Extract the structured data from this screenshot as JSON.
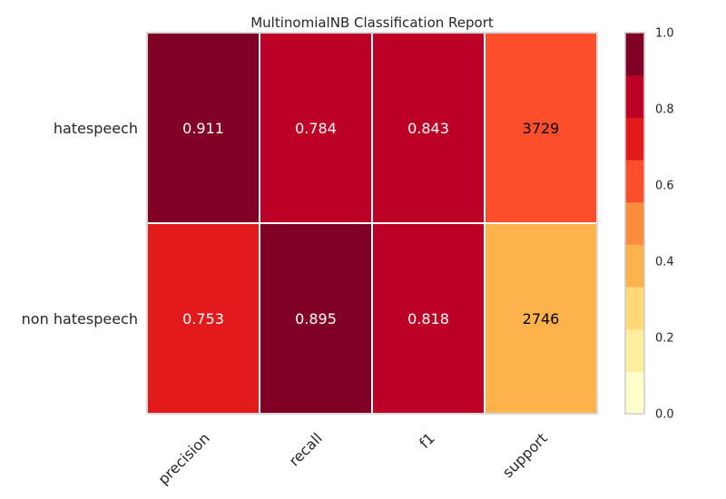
{
  "chart_data": {
    "type": "heatmap",
    "title": "MultinomialNB Classification Report",
    "rows": [
      "hatespeech",
      "non hatespeech"
    ],
    "columns": [
      "precision",
      "recall",
      "f1",
      "support"
    ],
    "values": [
      [
        "0.911",
        "0.784",
        "0.843",
        "3729"
      ],
      [
        "0.753",
        "0.895",
        "0.818",
        "2746"
      ]
    ],
    "cell_colors": [
      [
        "#800026",
        "#bd0026",
        "#bd0026",
        "#fc4e2a"
      ],
      [
        "#e31a1c",
        "#800026",
        "#bd0026",
        "#feb24c"
      ]
    ],
    "cell_text_colors": [
      [
        "#ffffff",
        "#ffffff",
        "#ffffff",
        "#000000"
      ],
      [
        "#ffffff",
        "#ffffff",
        "#ffffff",
        "#000000"
      ]
    ],
    "colorbar": {
      "range": [
        0.0,
        1.0
      ],
      "tick_labels": [
        "0.0",
        "0.2",
        "0.4",
        "0.6",
        "0.8",
        "1.0"
      ],
      "colors": [
        "#ffffcc",
        "#ffeda0",
        "#fed976",
        "#feb24c",
        "#fd8d3c",
        "#fc4e2a",
        "#e31a1c",
        "#bd0026",
        "#800026"
      ]
    },
    "grid": false
  }
}
